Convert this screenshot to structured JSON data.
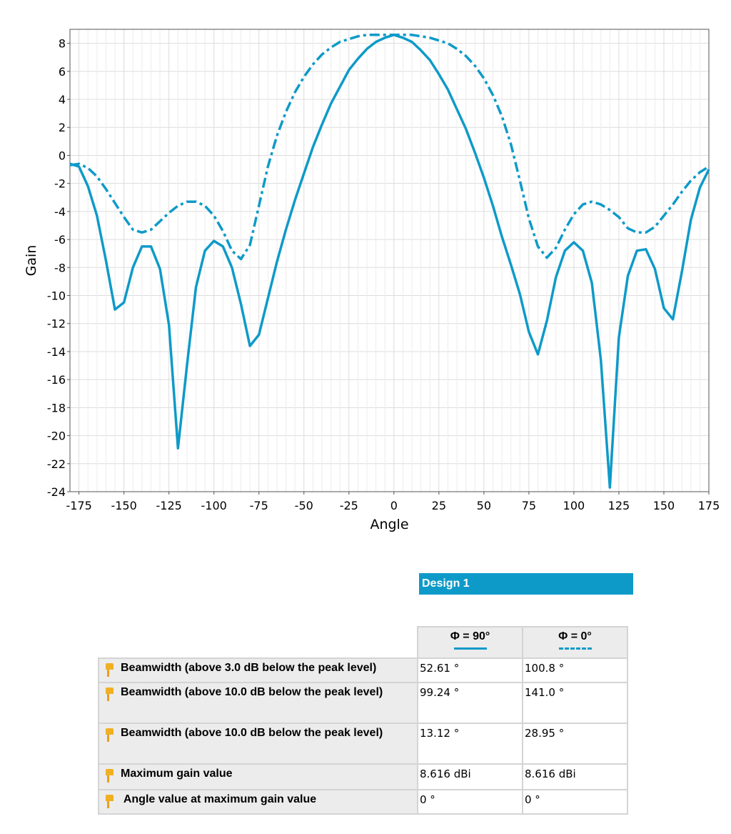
{
  "chart_data": {
    "type": "line",
    "xlabel": "Angle",
    "ylabel": "Gain",
    "xlim": [
      -180,
      175
    ],
    "ylim": [
      -24,
      9
    ],
    "x_ticks": [
      -175,
      -150,
      -125,
      -100,
      -75,
      -50,
      -25,
      0,
      25,
      50,
      75,
      100,
      125,
      150,
      175
    ],
    "y_ticks": [
      8,
      6,
      4,
      2,
      0,
      -2,
      -4,
      -6,
      -8,
      -10,
      -12,
      -14,
      -16,
      -18,
      -20,
      -22,
      -24
    ],
    "grid": true,
    "series": [
      {
        "line_style": "solid",
        "color": "#0e9ac8",
        "x": [
          -180,
          -175,
          -170,
          -165,
          -160,
          -155,
          -150,
          -145,
          -140,
          -135,
          -130,
          -125,
          -120,
          -115,
          -110,
          -105,
          -100,
          -95,
          -90,
          -85,
          -80,
          -75,
          -70,
          -65,
          -60,
          -55,
          -50,
          -45,
          -40,
          -35,
          -30,
          -25,
          -20,
          -15,
          -10,
          -5,
          0,
          5,
          10,
          15,
          20,
          25,
          30,
          35,
          40,
          45,
          50,
          55,
          60,
          65,
          70,
          75,
          80,
          85,
          90,
          95,
          100,
          105,
          110,
          115,
          120,
          125,
          130,
          135,
          140,
          145,
          150,
          155,
          160,
          165,
          170,
          175
        ],
        "values": [
          -0.6,
          -0.8,
          -2.2,
          -4.3,
          -7.5,
          -11.0,
          -10.5,
          -8.0,
          -6.5,
          -6.5,
          -8.1,
          -12.1,
          -20.9,
          -15.0,
          -9.4,
          -6.8,
          -6.1,
          -6.5,
          -8.0,
          -10.6,
          -13.6,
          -12.8,
          -10.2,
          -7.6,
          -5.3,
          -3.2,
          -1.3,
          0.6,
          2.2,
          3.7,
          4.9,
          6.1,
          6.9,
          7.6,
          8.1,
          8.4,
          8.6,
          8.4,
          8.1,
          7.5,
          6.8,
          5.8,
          4.7,
          3.3,
          1.9,
          0.2,
          -1.6,
          -3.6,
          -5.8,
          -7.8,
          -9.9,
          -12.6,
          -14.2,
          -11.8,
          -8.7,
          -6.8,
          -6.2,
          -6.8,
          -9.1,
          -14.6,
          -23.7,
          -13.0,
          -8.6,
          -6.8,
          -6.7,
          -8.1,
          -10.9,
          -11.7,
          -8.3,
          -4.6,
          -2.3,
          -1.0
        ]
      },
      {
        "line_style": "dash-dot",
        "color": "#0e9ac8",
        "x": [
          -180,
          -175,
          -170,
          -165,
          -160,
          -155,
          -150,
          -145,
          -140,
          -135,
          -130,
          -125,
          -120,
          -115,
          -110,
          -105,
          -100,
          -95,
          -90,
          -85,
          -80,
          -75,
          -70,
          -65,
          -60,
          -55,
          -50,
          -45,
          -40,
          -35,
          -30,
          -25,
          -20,
          -15,
          -10,
          -5,
          0,
          5,
          10,
          15,
          20,
          25,
          30,
          35,
          40,
          45,
          50,
          55,
          60,
          65,
          70,
          75,
          80,
          85,
          90,
          95,
          100,
          105,
          110,
          115,
          120,
          125,
          130,
          135,
          140,
          145,
          150,
          155,
          160,
          165,
          170,
          175
        ],
        "values": [
          -0.7,
          -0.6,
          -0.9,
          -1.5,
          -2.4,
          -3.4,
          -4.4,
          -5.3,
          -5.5,
          -5.3,
          -4.7,
          -4.1,
          -3.6,
          -3.3,
          -3.3,
          -3.6,
          -4.3,
          -5.4,
          -6.8,
          -7.4,
          -6.4,
          -3.6,
          -0.8,
          1.4,
          3.1,
          4.5,
          5.6,
          6.5,
          7.2,
          7.7,
          8.1,
          8.3,
          8.5,
          8.6,
          8.6,
          8.6,
          8.6,
          8.6,
          8.6,
          8.5,
          8.4,
          8.2,
          8.0,
          7.6,
          7.1,
          6.4,
          5.5,
          4.3,
          2.8,
          0.8,
          -1.8,
          -4.5,
          -6.5,
          -7.3,
          -6.6,
          -5.3,
          -4.2,
          -3.5,
          -3.3,
          -3.5,
          -3.9,
          -4.4,
          -5.2,
          -5.5,
          -5.5,
          -5.1,
          -4.3,
          -3.5,
          -2.6,
          -1.8,
          -1.2,
          -0.8
        ]
      }
    ]
  },
  "design": {
    "title": "Design 1"
  },
  "table": {
    "columns": [
      {
        "label": "Φ = 90°",
        "line_style": "solid"
      },
      {
        "label": "Φ = 0°",
        "line_style": "dashed"
      }
    ],
    "rows": [
      {
        "label": "Beamwidth (above 3.0 dB below the peak level)",
        "v1": "52.61 °",
        "v2": "100.8 °"
      },
      {
        "label": "Beamwidth (above 10.0 dB below the peak level)",
        "v1": "99.24 °",
        "v2": "141.0 °"
      },
      {
        "label": "Beamwidth (above 10.0 dB below the peak level)",
        "v1": "13.12 °",
        "v2": "28.95 °"
      },
      {
        "label": "Maximum gain value",
        "v1": "8.616 dBi",
        "v2": "8.616 dBi"
      },
      {
        "label": " Angle value at maximum gain value",
        "v1": "0 °",
        "v2": "0 °"
      }
    ]
  },
  "icons": {
    "row_marker": "pushpin-icon"
  },
  "colors": {
    "accent": "#0e9ac8",
    "header_bg": "#ececec",
    "border": "#d4d4d4"
  }
}
